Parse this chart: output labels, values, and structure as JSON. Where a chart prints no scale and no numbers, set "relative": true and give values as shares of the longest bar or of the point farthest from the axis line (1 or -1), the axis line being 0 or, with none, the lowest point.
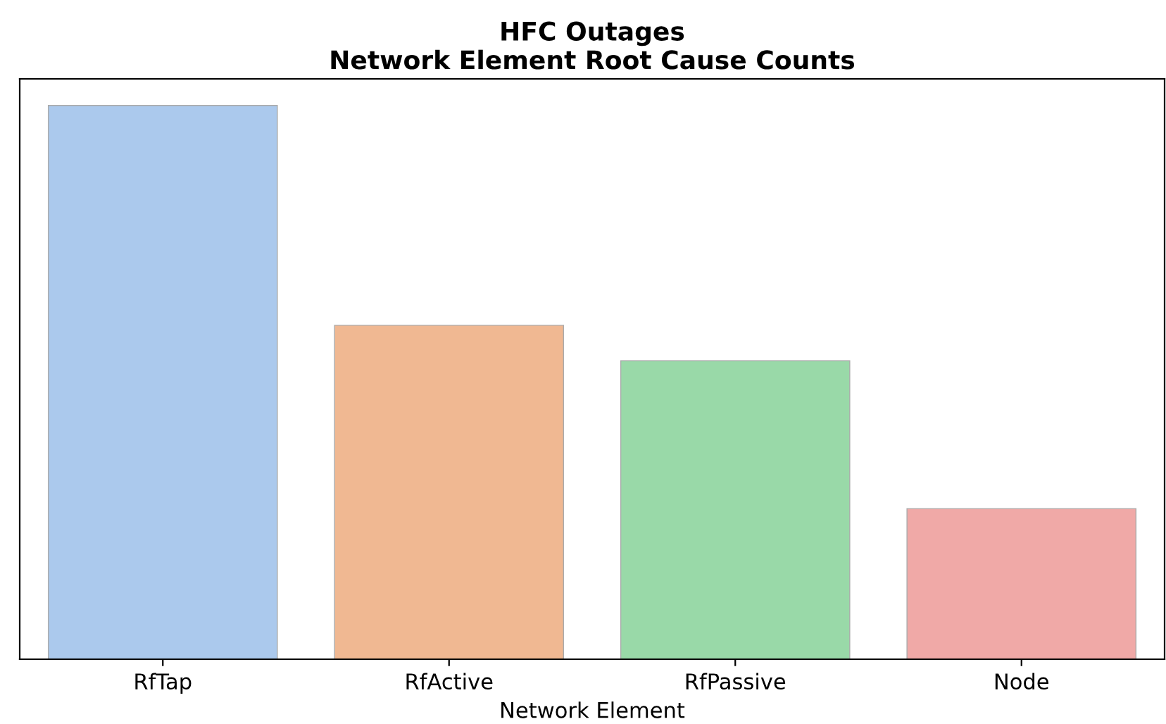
{
  "chart_data": {
    "type": "bar",
    "title": "HFC Outages",
    "subtitle": "Network Element Root Cause Counts",
    "xlabel": "Network Element",
    "categories": [
      "RfTap",
      "RfActive",
      "RfPassive",
      "Node"
    ],
    "values": [
      1,
      0.603,
      0.539,
      0.272
    ],
    "colors": [
      "#abc9ed",
      "#f0b892",
      "#99d9a8",
      "#f0a9a7"
    ],
    "relative": true,
    "grid": false,
    "legend": false
  }
}
